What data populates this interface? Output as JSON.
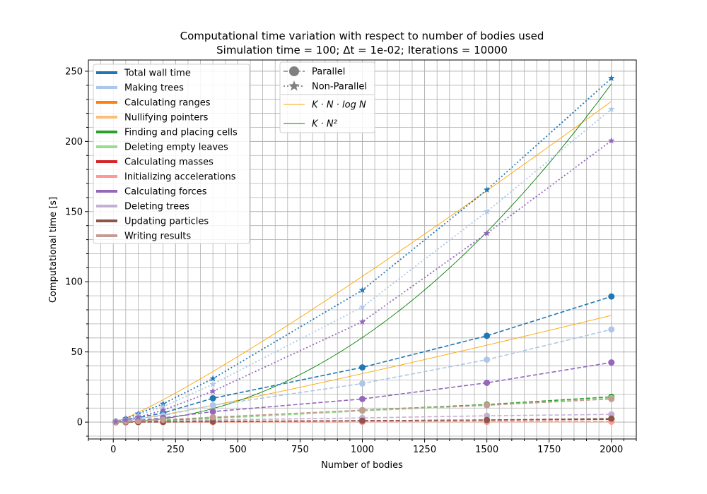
{
  "chart_data": {
    "type": "line",
    "title_line1": "Computational time variation with respect to number of bodies used",
    "title_line2": "Simulation time = 100;  Δt = 1e-02;  Iterations = 10000",
    "xlabel": "Number of bodies",
    "ylabel": "Computational time [s]",
    "xlim": [
      -100,
      2100
    ],
    "ylim": [
      -12,
      258
    ],
    "xticks": [
      0,
      250,
      500,
      750,
      1000,
      1250,
      1500,
      1750,
      2000
    ],
    "yticks": [
      0,
      50,
      100,
      150,
      200,
      250
    ],
    "grid": "major and minor",
    "legend_components": {
      "location": "upper left",
      "entries": [
        {
          "label": "Total wall time",
          "color": "#1f77b4"
        },
        {
          "label": "Making trees",
          "color": "#aec7e8"
        },
        {
          "label": "Calculating ranges",
          "color": "#ff7f0e"
        },
        {
          "label": "Nullifying pointers",
          "color": "#ffbb78"
        },
        {
          "label": "Finding and placing cells",
          "color": "#2ca02c"
        },
        {
          "label": "Deleting empty leaves",
          "color": "#98df8a"
        },
        {
          "label": "Calculating masses",
          "color": "#d62728"
        },
        {
          "label": "Initializing accelerations",
          "color": "#ff9896"
        },
        {
          "label": "Calculating forces",
          "color": "#9467bd"
        },
        {
          "label": "Deleting trees",
          "color": "#c5b0d5"
        },
        {
          "label": "Updating particles",
          "color": "#8c564b"
        },
        {
          "label": "Writing results",
          "color": "#c49c94"
        }
      ]
    },
    "legend_modes": {
      "location": "upper center",
      "entries": [
        {
          "label": "Parallel",
          "style": "dashed circle markers",
          "color": "#808080"
        },
        {
          "label": "Non-Parallel",
          "style": "dotted star markers",
          "color": "#808080"
        },
        {
          "label": "K · N · log N",
          "style": "thin solid",
          "color": "#ffa500"
        },
        {
          "label": "K · N²",
          "style": "thin solid",
          "color": "#008000"
        }
      ]
    },
    "x": [
      10,
      50,
      100,
      200,
      400,
      1000,
      1500,
      2000
    ],
    "parallel_series": [
      {
        "name": "Total wall time",
        "color": "#1f77b4",
        "values": [
          0.3,
          1.8,
          3.2,
          6.5,
          17,
          39,
          61.5,
          89.5
        ]
      },
      {
        "name": "Making trees",
        "color": "#aec7e8",
        "values": [
          0.2,
          1.2,
          2.3,
          4.7,
          12,
          27.5,
          44.5,
          66
        ]
      },
      {
        "name": "Calculating ranges",
        "color": "#ff7f0e",
        "values": [
          0,
          0,
          0,
          0,
          0.1,
          0.2,
          0.3,
          0.4
        ]
      },
      {
        "name": "Nullifying pointers",
        "color": "#ffbb78",
        "values": [
          0,
          0,
          0,
          0,
          0.1,
          0.2,
          0.3,
          0.4
        ]
      },
      {
        "name": "Finding and placing cells",
        "color": "#2ca02c",
        "values": [
          0,
          0.2,
          0.4,
          0.9,
          3,
          8.5,
          12.5,
          18
        ]
      },
      {
        "name": "Deleting empty leaves",
        "color": "#98df8a",
        "values": [
          0,
          0.1,
          0.2,
          0.5,
          2.5,
          8,
          12,
          17
        ]
      },
      {
        "name": "Calculating masses",
        "color": "#d62728",
        "values": [
          0,
          0.1,
          0.1,
          0.2,
          0.5,
          1,
          1.5,
          2
        ]
      },
      {
        "name": "Initializing accelerations",
        "color": "#ff9896",
        "values": [
          0,
          0,
          0,
          0,
          0.1,
          0.2,
          0.3,
          0.4
        ]
      },
      {
        "name": "Calculating forces",
        "color": "#9467bd",
        "values": [
          0.1,
          0.5,
          1.2,
          3,
          7.5,
          16.5,
          28,
          42.5
        ]
      },
      {
        "name": "Deleting trees",
        "color": "#c5b0d5",
        "values": [
          0,
          0.1,
          0.2,
          0.5,
          1.5,
          3,
          4.5,
          5.5
        ]
      },
      {
        "name": "Updating particles",
        "color": "#8c564b",
        "values": [
          0,
          0,
          0.1,
          0.2,
          0.4,
          1,
          1.5,
          2.5
        ]
      },
      {
        "name": "Writing results",
        "color": "#c49c94",
        "values": [
          0.1,
          0.4,
          0.8,
          1.7,
          3.5,
          8.5,
          12,
          16.5
        ]
      }
    ],
    "nonparallel_series": [
      {
        "name": "Total wall time",
        "color": "#1f77b4",
        "values": [
          0.5,
          2.5,
          6,
          13,
          31,
          94,
          165.5,
          245
        ]
      },
      {
        "name": "Making trees",
        "color": "#aec7e8",
        "values": [
          0.4,
          2,
          5,
          11,
          27,
          82,
          150,
          223
        ]
      },
      {
        "name": "Calculating forces",
        "color": "#9467bd",
        "values": [
          0.3,
          1.5,
          3.5,
          8.5,
          22,
          71.5,
          134.5,
          200.5
        ]
      }
    ],
    "reference_curves": [
      {
        "name": "K · N · log N",
        "color": "#ffa500",
        "scale": [
          {
            "y_at_2000": 228.5
          },
          {
            "y_at_2000": 76
          }
        ]
      },
      {
        "name": "K · N²",
        "color": "#008000",
        "scale": [
          {
            "y_at_2000": 241
          }
        ]
      }
    ]
  }
}
